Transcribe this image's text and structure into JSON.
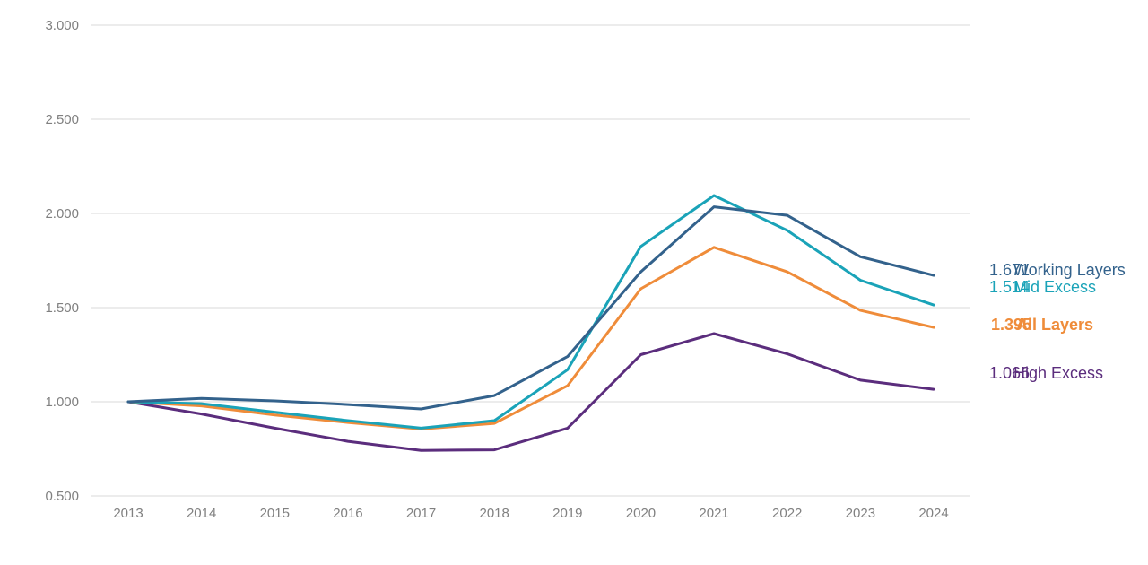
{
  "chart_data": {
    "type": "line",
    "title": "",
    "xlabel": "",
    "ylabel": "",
    "x": [
      "2013",
      "2014",
      "2015",
      "2016",
      "2017",
      "2018",
      "2019",
      "2020",
      "2021",
      "2022",
      "2023",
      "2024"
    ],
    "ylim": [
      0.5,
      3.0
    ],
    "y_ticks": [
      "0.500",
      "1.000",
      "1.500",
      "2.000",
      "2.500",
      "3.000"
    ],
    "y_tick_values": [
      0.5,
      1.0,
      1.5,
      2.0,
      2.5,
      3.0
    ],
    "grid": true,
    "legend": "end-of-line labels (right)",
    "series": [
      {
        "name": "Working Layers",
        "color": "#33628c",
        "end_label": "1.671",
        "bold": false,
        "values": [
          1.0,
          1.018,
          1.005,
          0.985,
          0.962,
          1.033,
          1.24,
          1.69,
          2.035,
          1.99,
          1.77,
          1.671
        ]
      },
      {
        "name": "Mid Excess",
        "color": "#1aa3b8",
        "end_label": "1.514",
        "bold": false,
        "values": [
          1.0,
          0.99,
          0.945,
          0.9,
          0.86,
          0.9,
          1.17,
          1.825,
          2.095,
          1.91,
          1.645,
          1.514
        ]
      },
      {
        "name": "All Layers",
        "color": "#ef8c3a",
        "end_label": "1.395",
        "bold": true,
        "values": [
          1.0,
          0.978,
          0.93,
          0.89,
          0.855,
          0.885,
          1.085,
          1.6,
          1.82,
          1.69,
          1.485,
          1.395
        ]
      },
      {
        "name": "High Excess",
        "color": "#5b2d7d",
        "end_label": "1.066",
        "bold": false,
        "values": [
          1.0,
          0.935,
          0.86,
          0.79,
          0.742,
          0.745,
          0.86,
          1.25,
          1.362,
          1.255,
          1.115,
          1.066
        ]
      }
    ]
  }
}
